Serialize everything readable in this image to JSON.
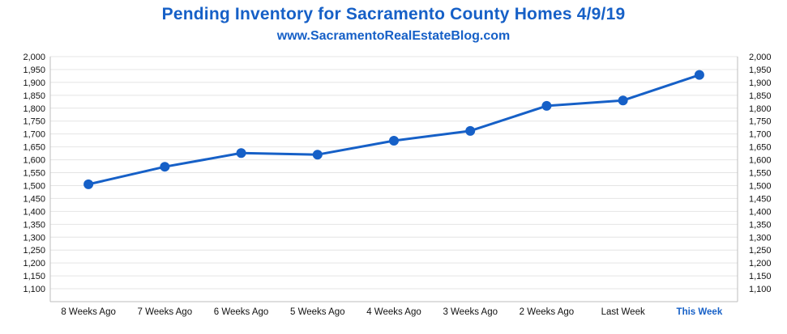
{
  "chart_data": {
    "type": "line",
    "title": "Pending Inventory for Sacramento County Homes 4/9/19",
    "subtitle": "www.SacramentoRealEstateBlog.com",
    "categories": [
      "8 Weeks Ago",
      "7 Weeks Ago",
      "6 Weeks Ago",
      "5 Weeks Ago",
      "4 Weeks Ago",
      "3 Weeks Ago",
      "2 Weeks Ago",
      "Last Week",
      "This Week"
    ],
    "highlight_category": "This Week",
    "series": [
      {
        "name": "Pending Inventory",
        "values": [
          1505,
          1573,
          1626,
          1620,
          1674,
          1712,
          1809,
          1830,
          1929
        ]
      }
    ],
    "ylim": [
      1050,
      2000
    ],
    "yticks": [
      1100,
      1150,
      1200,
      1250,
      1300,
      1350,
      1400,
      1450,
      1500,
      1550,
      1600,
      1650,
      1700,
      1750,
      1800,
      1850,
      1900,
      1950,
      2000
    ],
    "ytick_labels": [
      "1,100",
      "1,150",
      "1,200",
      "1,250",
      "1,300",
      "1,350",
      "1,400",
      "1,450",
      "1,500",
      "1,550",
      "1,600",
      "1,650",
      "1,700",
      "1,750",
      "1,800",
      "1,850",
      "1,900",
      "1,950",
      "2,000"
    ],
    "xlabel": "",
    "ylabel": "",
    "grid": true,
    "legend": "none",
    "colors": {
      "line": "#1660c7",
      "title": "#1660c7",
      "highlight": "#1660c7"
    }
  }
}
